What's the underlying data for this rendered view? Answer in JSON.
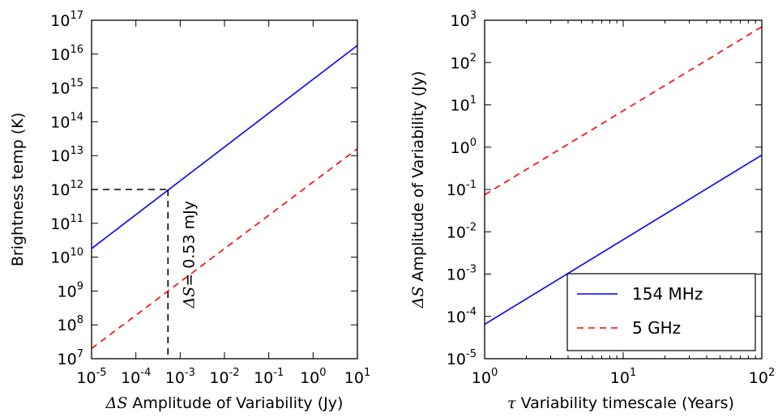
{
  "chart_data": [
    {
      "type": "line",
      "xscale": "log",
      "yscale": "log",
      "xlim": [
        1e-05,
        10
      ],
      "ylim": [
        10000000.0,
        1e+17
      ],
      "xlabel": {
        "symbol": "ΔS",
        "text": " Amplitude of Variability (Jy)"
      },
      "ylabel": "Brightness temp (K)",
      "x_ticks": [
        {
          "base": "10",
          "exp": "-5",
          "value": 1e-05
        },
        {
          "base": "10",
          "exp": "-4",
          "value": 0.0001
        },
        {
          "base": "10",
          "exp": "-3",
          "value": 0.001
        },
        {
          "base": "10",
          "exp": "-2",
          "value": 0.01
        },
        {
          "base": "10",
          "exp": "-1",
          "value": 0.1
        },
        {
          "base": "10",
          "exp": "0",
          "value": 1
        },
        {
          "base": "10",
          "exp": "1",
          "value": 10
        }
      ],
      "y_ticks": [
        {
          "base": "10",
          "exp": "7",
          "value": 10000000.0
        },
        {
          "base": "10",
          "exp": "8",
          "value": 100000000.0
        },
        {
          "base": "10",
          "exp": "9",
          "value": 1000000000.0
        },
        {
          "base": "10",
          "exp": "10",
          "value": 10000000000.0
        },
        {
          "base": "10",
          "exp": "11",
          "value": 100000000000.0
        },
        {
          "base": "10",
          "exp": "12",
          "value": 1000000000000.0
        },
        {
          "base": "10",
          "exp": "13",
          "value": 10000000000000.0
        },
        {
          "base": "10",
          "exp": "14",
          "value": 100000000000000.0
        },
        {
          "base": "10",
          "exp": "15",
          "value": 1000000000000000.0
        },
        {
          "base": "10",
          "exp": "16",
          "value": 1e+16
        },
        {
          "base": "10",
          "exp": "17",
          "value": 1e+17
        }
      ],
      "series": [
        {
          "color": "#0000ff",
          "style": "solid",
          "x": [
            1e-05,
            10
          ],
          "y": [
            18000000000.0,
            1.8e+16
          ]
        },
        {
          "color": "#ff0000",
          "style": "dashed",
          "x": [
            1e-05,
            10
          ],
          "y": [
            20000000.0,
            16000000000000.0
          ]
        }
      ],
      "annotation": {
        "symbol": "ΔS",
        "text": "= 0.53 mJy",
        "x": 0.00053,
        "y": 1000000000000.0,
        "color": "#000000",
        "style": "dashed"
      }
    },
    {
      "type": "line",
      "xscale": "log",
      "yscale": "log",
      "xlim": [
        1,
        100
      ],
      "ylim": [
        1e-05,
        1000
      ],
      "xlabel": {
        "symbol": "τ",
        "text": " Variability timescale (Years)"
      },
      "ylabel": {
        "symbol": "ΔS",
        "text": " Amplitude of Variability (Jy)"
      },
      "x_ticks": [
        {
          "base": "10",
          "exp": "0",
          "value": 1
        },
        {
          "base": "10",
          "exp": "1",
          "value": 10
        },
        {
          "base": "10",
          "exp": "2",
          "value": 100
        }
      ],
      "y_ticks": [
        {
          "base": "10",
          "exp": "-5",
          "value": 1e-05
        },
        {
          "base": "10",
          "exp": "-4",
          "value": 0.0001
        },
        {
          "base": "10",
          "exp": "-3",
          "value": 0.001
        },
        {
          "base": "10",
          "exp": "-2",
          "value": 0.01
        },
        {
          "base": "10",
          "exp": "-1",
          "value": 0.1
        },
        {
          "base": "10",
          "exp": "0",
          "value": 1
        },
        {
          "base": "10",
          "exp": "1",
          "value": 10
        },
        {
          "base": "10",
          "exp": "2",
          "value": 100
        },
        {
          "base": "10",
          "exp": "3",
          "value": 1000
        }
      ],
      "series": [
        {
          "name": "154 MHz",
          "color": "#0000ff",
          "style": "solid",
          "x": [
            1,
            100
          ],
          "y": [
            6.5e-05,
            0.65
          ]
        },
        {
          "name": "5 GHz",
          "color": "#ff0000",
          "style": "dashed",
          "x": [
            1,
            100
          ],
          "y": [
            0.075,
            700
          ]
        }
      ],
      "legend": {
        "position": "lower-right"
      }
    }
  ]
}
